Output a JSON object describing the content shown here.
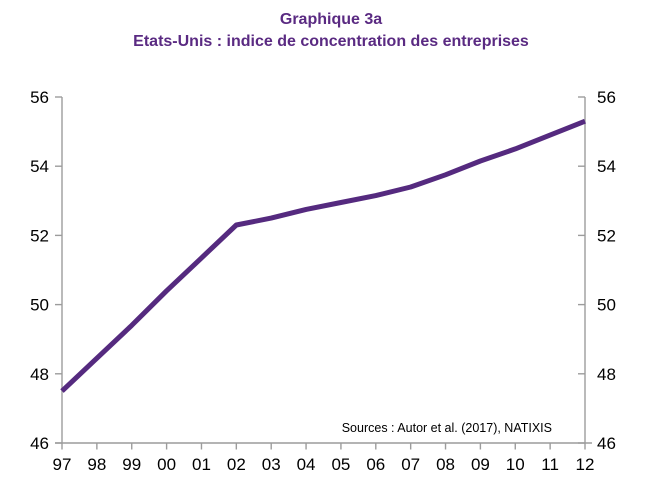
{
  "title": {
    "line1": "Graphique 3a",
    "line2": "Etats-Unis : indice de concentration des entreprises",
    "color": "#5a2a82"
  },
  "source_note": "Sources : Autor et al. (2017), NATIXIS",
  "chart_data": {
    "type": "line",
    "title": "Graphique 3a",
    "subtitle": "Etats-Unis : indice de concentration des entreprises",
    "categories": [
      "97",
      "98",
      "99",
      "00",
      "01",
      "02",
      "03",
      "04",
      "05",
      "06",
      "07",
      "08",
      "09",
      "10",
      "11",
      "12"
    ],
    "series": [
      {
        "name": "Indice de concentration des entreprises (Etats-Unis)",
        "color": "#552a7f",
        "values": [
          47.5,
          48.45,
          49.4,
          50.4,
          51.35,
          52.3,
          52.5,
          52.75,
          52.95,
          53.15,
          53.4,
          53.75,
          54.15,
          54.5,
          54.9,
          55.3
        ]
      }
    ],
    "ylim": [
      46,
      56
    ],
    "y_ticks": [
      46,
      48,
      50,
      52,
      54,
      56
    ],
    "y_axis_left": true,
    "y_axis_right": true,
    "grid": false,
    "legend_position": "none",
    "axis_color": "#9c9c9c",
    "tick_label_color": "#000000",
    "source": "Sources : Autor et al. (2017), NATIXIS"
  }
}
